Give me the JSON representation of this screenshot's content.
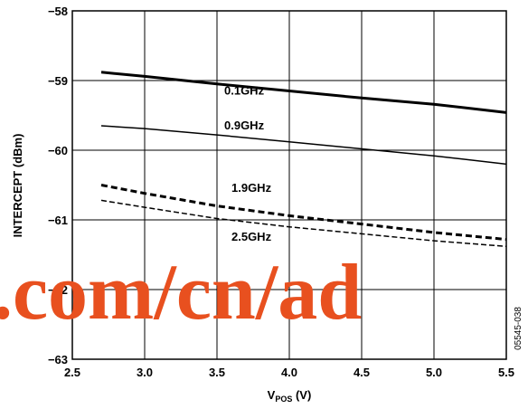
{
  "chart_data": {
    "type": "line",
    "xlabel": "V",
    "xlabel_subscript": "POS",
    "xlabel_suffix": " (V)",
    "ylabel": "INTERCEPT (dBm)",
    "xlim": [
      2.5,
      5.5
    ],
    "ylim": [
      -63,
      -58
    ],
    "xticks": [
      "2.5",
      "3.0",
      "3.5",
      "4.0",
      "4.5",
      "5.0",
      "5.5"
    ],
    "yticks": [
      "−58",
      "−59",
      "−60",
      "−61",
      "−62",
      "−63"
    ],
    "grid": true,
    "series": [
      {
        "name": "0.1GHz",
        "style": "solid-thick",
        "x": [
          2.7,
          3.0,
          3.5,
          4.0,
          4.5,
          5.0,
          5.5
        ],
        "y": [
          -58.88,
          -58.94,
          -59.05,
          -59.15,
          -59.25,
          -59.34,
          -59.46
        ]
      },
      {
        "name": "0.9GHz",
        "style": "solid-thin",
        "x": [
          2.7,
          3.0,
          3.5,
          4.0,
          4.5,
          5.0,
          5.5
        ],
        "y": [
          -59.65,
          -59.69,
          -59.78,
          -59.88,
          -59.98,
          -60.08,
          -60.2
        ]
      },
      {
        "name": "1.9GHz",
        "style": "dashed-thick",
        "x": [
          2.7,
          3.0,
          3.5,
          4.0,
          4.5,
          5.0,
          5.5
        ],
        "y": [
          -60.5,
          -60.62,
          -60.8,
          -60.94,
          -61.06,
          -61.18,
          -61.28
        ]
      },
      {
        "name": "2.5GHz",
        "style": "dashed-thin",
        "x": [
          2.7,
          3.0,
          3.5,
          4.0,
          4.5,
          5.0,
          5.5
        ],
        "y": [
          -60.72,
          -60.82,
          -60.98,
          -61.1,
          -61.2,
          -61.3,
          -61.38
        ]
      }
    ],
    "figure_id": "05545-038"
  },
  "watermark": ".com/cn/ad",
  "colors": {
    "axis": "#000000",
    "watermark": "#e8501f"
  }
}
